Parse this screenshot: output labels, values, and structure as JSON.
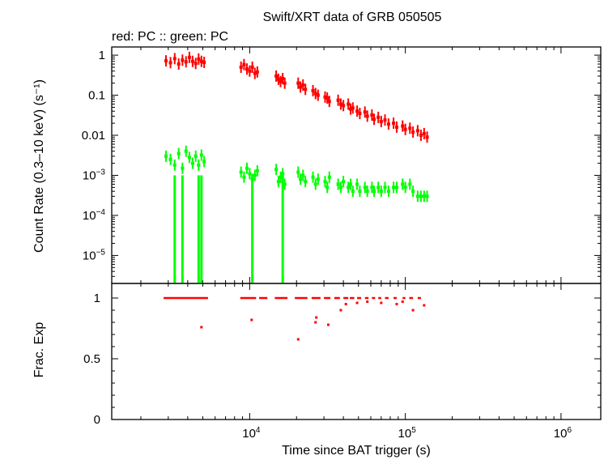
{
  "chart_data": [
    {
      "type": "scatter",
      "title": "Swift/XRT data of GRB 050505",
      "subtitle": "red: PC  :: green: PC",
      "ylabel": "Count Rate (0.3–10 keV) (s⁻¹)",
      "xlabel": "",
      "xscale": "log",
      "yscale": "log",
      "xlim": [
        1300,
        1800000
      ],
      "ylim": [
        2e-06,
        1.6
      ],
      "y_tick_labels": [
        {
          "value": 1,
          "label": "1"
        },
        {
          "value": 0.1,
          "label": "0.1"
        },
        {
          "value": 0.01,
          "label": "0.01"
        },
        {
          "value": 0.001,
          "label": "10",
          "exp": "−3"
        },
        {
          "value": 0.0001,
          "label": "10",
          "exp": "−4"
        },
        {
          "value": 1e-05,
          "label": "10",
          "exp": "−5"
        }
      ],
      "series": [
        {
          "color": "#ff0000",
          "x": [
            2900,
            3100,
            3300,
            3500,
            3700,
            3900,
            4100,
            4300,
            4500,
            4700,
            4900,
            5100,
            8800,
            9200,
            9600,
            10000,
            10400,
            10800,
            11200,
            14800,
            15300,
            15800,
            16300,
            16800,
            20500,
            21200,
            22000,
            22800,
            25500,
            26500,
            27500,
            30500,
            31500,
            32500,
            37000,
            38500,
            40000,
            43000,
            44500,
            46000,
            49000,
            51000,
            55000,
            57000,
            61000,
            63000,
            67000,
            70000,
            74000,
            78000,
            84000,
            88000,
            96000,
            100000,
            107000,
            112000,
            120000,
            126000,
            132000,
            138000
          ],
          "y": [
            0.72,
            0.65,
            0.82,
            0.6,
            0.75,
            0.68,
            0.88,
            0.7,
            0.62,
            0.8,
            0.7,
            0.66,
            0.5,
            0.58,
            0.45,
            0.4,
            0.5,
            0.35,
            0.38,
            0.3,
            0.25,
            0.22,
            0.26,
            0.2,
            0.2,
            0.16,
            0.18,
            0.14,
            0.13,
            0.11,
            0.1,
            0.09,
            0.085,
            0.07,
            0.075,
            0.06,
            0.055,
            0.06,
            0.045,
            0.048,
            0.04,
            0.035,
            0.038,
            0.03,
            0.032,
            0.025,
            0.028,
            0.022,
            0.024,
            0.019,
            0.02,
            0.016,
            0.017,
            0.014,
            0.015,
            0.012,
            0.013,
            0.01,
            0.011,
            0.009
          ]
        },
        {
          "color": "#00ff00",
          "x": [
            2900,
            3100,
            3300,
            3500,
            3700,
            3900,
            4100,
            4300,
            4500,
            4700,
            4900,
            5100,
            8800,
            9200,
            9600,
            10000,
            10400,
            10800,
            11200,
            14800,
            15300,
            15800,
            16300,
            16800,
            20500,
            21200,
            22000,
            22800,
            25500,
            26500,
            27500,
            30500,
            31500,
            32500,
            37000,
            38500,
            40000,
            43000,
            44500,
            46000,
            49000,
            51000,
            55000,
            57000,
            61000,
            63000,
            67000,
            70000,
            74000,
            78000,
            84000,
            88000,
            96000,
            100000,
            107000,
            112000,
            120000,
            126000,
            132000,
            138000
          ],
          "y": [
            0.003,
            0.0025,
            0.0018,
            0.0035,
            0.0015,
            0.004,
            0.0028,
            0.002,
            0.003,
            0.0018,
            0.0032,
            0.0022,
            0.0012,
            0.0009,
            0.0015,
            0.0011,
            0.0008,
            0.001,
            0.0013,
            0.0014,
            0.0007,
            0.0009,
            0.0011,
            0.0006,
            0.0012,
            0.0008,
            0.001,
            0.0007,
            0.0009,
            0.0006,
            0.0008,
            0.0007,
            0.0005,
            0.0009,
            0.0006,
            0.0005,
            0.0007,
            0.0005,
            0.0006,
            0.0004,
            0.0006,
            0.0004,
            0.0005,
            0.0004,
            0.0005,
            0.0004,
            0.0005,
            0.0004,
            0.0005,
            0.0004,
            0.0005,
            0.0005,
            0.0006,
            0.0005,
            0.0006,
            0.0004,
            0.0003,
            0.0003,
            0.0003,
            0.0003
          ]
        }
      ]
    },
    {
      "type": "scatter",
      "ylabel": "Frac. Exp",
      "xlabel": "Time since BAT trigger (s)",
      "xscale": "log",
      "xlim": [
        1300,
        1800000
      ],
      "ylim": [
        0,
        1.12
      ],
      "x_tick_labels": [
        {
          "value": 10000,
          "label": "10",
          "exp": "4"
        },
        {
          "value": 100000,
          "label": "10",
          "exp": "5"
        },
        {
          "value": 1000000,
          "label": "10",
          "exp": "6"
        }
      ],
      "y_tick_labels": [
        {
          "value": 1,
          "label": "1"
        },
        {
          "value": 0.5,
          "label": "0.5"
        },
        {
          "value": 0,
          "label": "0"
        }
      ],
      "series": [
        {
          "color": "#ff0000",
          "segments": [
            [
              2800,
              5400,
              1.0
            ],
            [
              8700,
              11000,
              1.0
            ],
            [
              11500,
              13000,
              1.0
            ],
            [
              14500,
              17500,
              1.0
            ],
            [
              19500,
              23500,
              1.0
            ],
            [
              25000,
              28500,
              1.0
            ],
            [
              30000,
              33000,
              1.0
            ],
            [
              35000,
              38000,
              1.0
            ],
            [
              40000,
              43000,
              1.0
            ],
            [
              44000,
              47000,
              1.0
            ],
            [
              49000,
              52000,
              1.0
            ],
            [
              55000,
              58000,
              1.0
            ],
            [
              61000,
              64000,
              1.0
            ],
            [
              67000,
              70000,
              1.0
            ],
            [
              74000,
              78000,
              1.0
            ],
            [
              84000,
              88000,
              1.0
            ],
            [
              96000,
              100000,
              1.0
            ],
            [
              106000,
              112000,
              1.0
            ],
            [
              120000,
              126000,
              1.0
            ]
          ],
          "points": [
            {
              "x": 4900,
              "y": 0.76
            },
            {
              "x": 10300,
              "y": 0.82
            },
            {
              "x": 20500,
              "y": 0.66
            },
            {
              "x": 26500,
              "y": 0.8
            },
            {
              "x": 26800,
              "y": 0.84
            },
            {
              "x": 32000,
              "y": 0.78
            },
            {
              "x": 38500,
              "y": 0.9
            },
            {
              "x": 41500,
              "y": 0.95
            },
            {
              "x": 49000,
              "y": 0.96
            },
            {
              "x": 57000,
              "y": 0.97
            },
            {
              "x": 70000,
              "y": 0.96
            },
            {
              "x": 88000,
              "y": 0.95
            },
            {
              "x": 96000,
              "y": 0.97
            },
            {
              "x": 112000,
              "y": 0.9
            },
            {
              "x": 132000,
              "y": 0.94
            }
          ]
        }
      ]
    }
  ]
}
